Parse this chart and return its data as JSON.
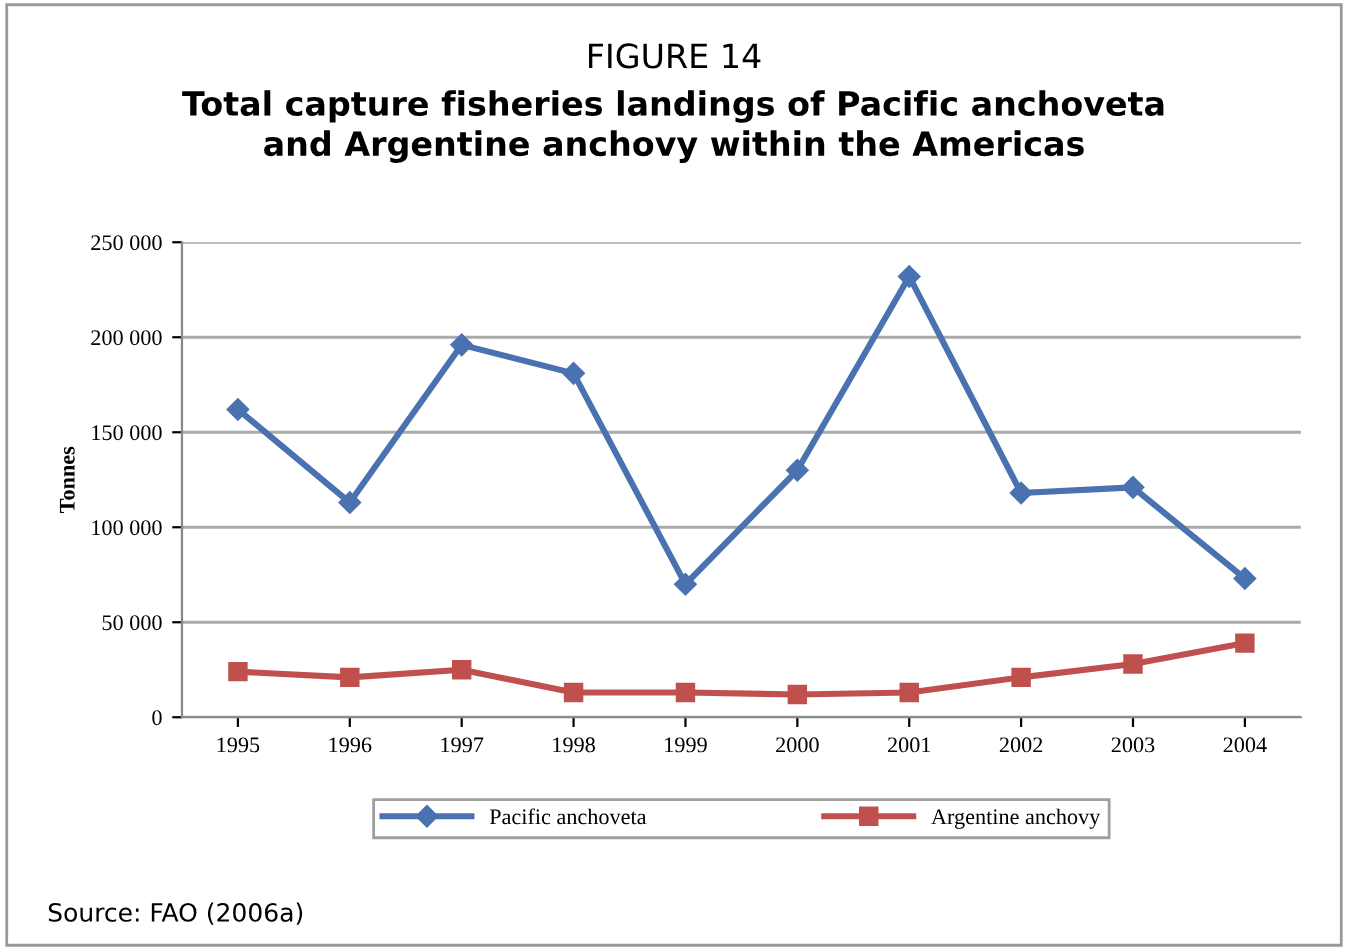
{
  "chart_data": {
    "type": "line",
    "title": "FIGURE 14",
    "subtitle": "Total capture fisheries landings of Pacific anchoveta\nand Argentine anchovy within the Americas",
    "ylabel": "Tonnes",
    "categories": [
      "1995",
      "1996",
      "1997",
      "1998",
      "1999",
      "2000",
      "2001",
      "2002",
      "2003",
      "2004"
    ],
    "series": [
      {
        "name": "Pacific anchoveta",
        "color": "#4a72b0",
        "marker": "diamond",
        "values": [
          162000,
          113000,
          196000,
          181000,
          70000,
          130000,
          232000,
          118000,
          121000,
          73000
        ]
      },
      {
        "name": "Argentine anchovy",
        "color": "#c0504d",
        "marker": "square",
        "values": [
          24000,
          21000,
          25000,
          13000,
          13000,
          12000,
          13000,
          21000,
          28000,
          39000
        ]
      }
    ],
    "ylim": [
      0,
      250000
    ],
    "yticks": [
      {
        "value": 0,
        "label": "0"
      },
      {
        "value": 50000,
        "label": "50 000"
      },
      {
        "value": 100000,
        "label": "100 000"
      },
      {
        "value": 150000,
        "label": "150 000"
      },
      {
        "value": 200000,
        "label": "200 000"
      },
      {
        "value": 250000,
        "label": "250 000"
      }
    ],
    "grid": "y",
    "legend": "bottom",
    "line_style": "solid",
    "annotations": [
      "Source: FAO (2006a)"
    ]
  }
}
